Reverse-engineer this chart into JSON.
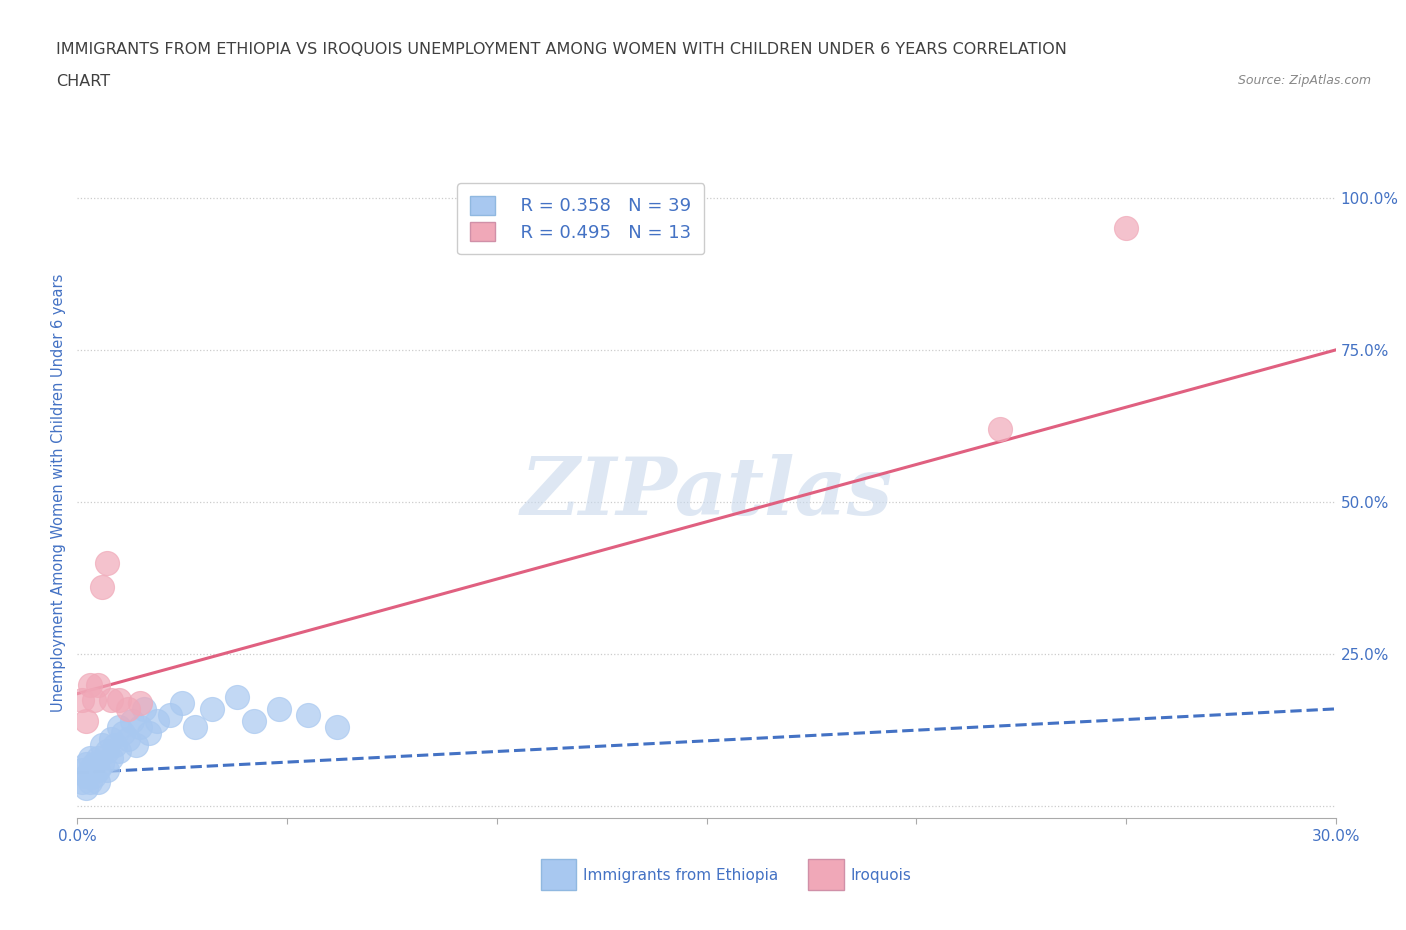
{
  "title_line1": "IMMIGRANTS FROM ETHIOPIA VS IROQUOIS UNEMPLOYMENT AMONG WOMEN WITH CHILDREN UNDER 6 YEARS CORRELATION",
  "title_line2": "CHART",
  "source": "Source: ZipAtlas.com",
  "ylabel": "Unemployment Among Women with Children Under 6 years",
  "xlim": [
    0.0,
    0.3
  ],
  "ylim": [
    -0.02,
    1.05
  ],
  "xticks": [
    0.0,
    0.05,
    0.1,
    0.15,
    0.2,
    0.25,
    0.3
  ],
  "xtick_labels": [
    "0.0%",
    "",
    "",
    "",
    "",
    "",
    "30.0%"
  ],
  "ytick_positions": [
    0.0,
    0.25,
    0.5,
    0.75,
    1.0
  ],
  "ytick_labels": [
    "",
    "25.0%",
    "50.0%",
    "75.0%",
    "100.0%"
  ],
  "legend_R1": "R = 0.358",
  "legend_N1": "N = 39",
  "legend_R2": "R = 0.495",
  "legend_N2": "N = 13",
  "color_blue": "#A8C8F0",
  "color_pink": "#F0A8B8",
  "color_line_blue": "#4472C4",
  "color_line_pink": "#E06080",
  "color_text_blue": "#4472C4",
  "color_title": "#404040",
  "watermark_color": "#C8D8EC",
  "ethiopia_scatter_x": [
    0.001,
    0.001,
    0.002,
    0.002,
    0.002,
    0.003,
    0.003,
    0.003,
    0.004,
    0.004,
    0.005,
    0.005,
    0.005,
    0.006,
    0.006,
    0.007,
    0.007,
    0.008,
    0.008,
    0.009,
    0.01,
    0.01,
    0.011,
    0.012,
    0.013,
    0.014,
    0.015,
    0.016,
    0.017,
    0.019,
    0.022,
    0.025,
    0.028,
    0.032,
    0.038,
    0.042,
    0.048,
    0.055,
    0.062
  ],
  "ethiopia_scatter_y": [
    0.04,
    0.06,
    0.05,
    0.03,
    0.07,
    0.06,
    0.04,
    0.08,
    0.05,
    0.07,
    0.08,
    0.06,
    0.04,
    0.1,
    0.07,
    0.09,
    0.06,
    0.11,
    0.08,
    0.1,
    0.13,
    0.09,
    0.12,
    0.11,
    0.14,
    0.1,
    0.13,
    0.16,
    0.12,
    0.14,
    0.15,
    0.17,
    0.13,
    0.16,
    0.18,
    0.14,
    0.16,
    0.15,
    0.13
  ],
  "iroquois_scatter_x": [
    0.001,
    0.002,
    0.003,
    0.004,
    0.005,
    0.006,
    0.007,
    0.008,
    0.01,
    0.012,
    0.015,
    0.22,
    0.25
  ],
  "iroquois_scatter_y": [
    0.175,
    0.14,
    0.2,
    0.175,
    0.2,
    0.36,
    0.4,
    0.175,
    0.175,
    0.16,
    0.17,
    0.62,
    0.95
  ],
  "eth_trendline_x": [
    0.0,
    0.3
  ],
  "eth_trendline_y": [
    0.055,
    0.16
  ],
  "iro_trendline_x": [
    0.0,
    0.3
  ],
  "iro_trendline_y": [
    0.185,
    0.75
  ],
  "grid_color": "#CCCCCC",
  "background_color": "#FFFFFF"
}
